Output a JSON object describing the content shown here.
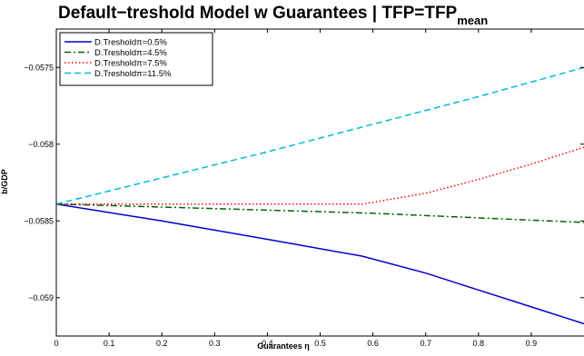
{
  "chart_data": {
    "type": "line",
    "title_main": "Default−treshold Model w Guarantees | TFP=TFP",
    "title_sub": "mean",
    "xlabel": "Guarantees η",
    "ylabel": "b/GDP",
    "xlim": [
      0,
      1
    ],
    "ylim": [
      -0.05925,
      -0.05725
    ],
    "xticks": [
      0,
      0.1,
      0.2,
      0.3,
      0.4,
      0.5,
      0.6,
      0.7,
      0.8,
      0.9
    ],
    "xtick_labels": [
      "0",
      "0.1",
      "0.2",
      "0.3",
      "0.4",
      "0.5",
      "0.6",
      "0.7",
      "0.8",
      "0.9"
    ],
    "yticks": [
      -0.059,
      -0.0585,
      -0.058,
      -0.0575
    ],
    "ytick_labels": [
      "−0.059",
      "−0.0585",
      "−0.058",
      "−0.0575"
    ],
    "grid": false,
    "legend_position": "top-left",
    "series": [
      {
        "name": "D.Tresholdπ=0.5%",
        "color": "#0000cc",
        "dash": "solid",
        "x": [
          0,
          0.2,
          0.4,
          0.58,
          0.7,
          0.8,
          0.9,
          1.0
        ],
        "y": [
          -0.05839,
          -0.0585,
          -0.05862,
          -0.05873,
          -0.05884,
          -0.05895,
          -0.05906,
          -0.05917
        ]
      },
      {
        "name": "D.Tresholdπ=4.5%",
        "color": "#006400",
        "dash": "dashdot",
        "x": [
          0,
          0.2,
          0.4,
          0.6,
          0.8,
          1.0
        ],
        "y": [
          -0.05839,
          -0.05841,
          -0.05843,
          -0.05845,
          -0.05848,
          -0.05851
        ]
      },
      {
        "name": "D.Tresholdπ=7.5%",
        "color": "#ff0000",
        "dash": "dotted",
        "x": [
          0,
          0.2,
          0.4,
          0.58,
          0.7,
          0.8,
          0.9,
          1.0
        ],
        "y": [
          -0.05839,
          -0.05839,
          -0.05839,
          -0.05839,
          -0.05832,
          -0.05823,
          -0.05813,
          -0.05802
        ]
      },
      {
        "name": "D.Tresholdπ=11.5%",
        "color": "#00bcd4",
        "dash": "dashed",
        "x": [
          0,
          0.2,
          0.4,
          0.6,
          0.8,
          1.0
        ],
        "y": [
          -0.05839,
          -0.05822,
          -0.05805,
          -0.05787,
          -0.05769,
          -0.0575
        ]
      }
    ]
  }
}
